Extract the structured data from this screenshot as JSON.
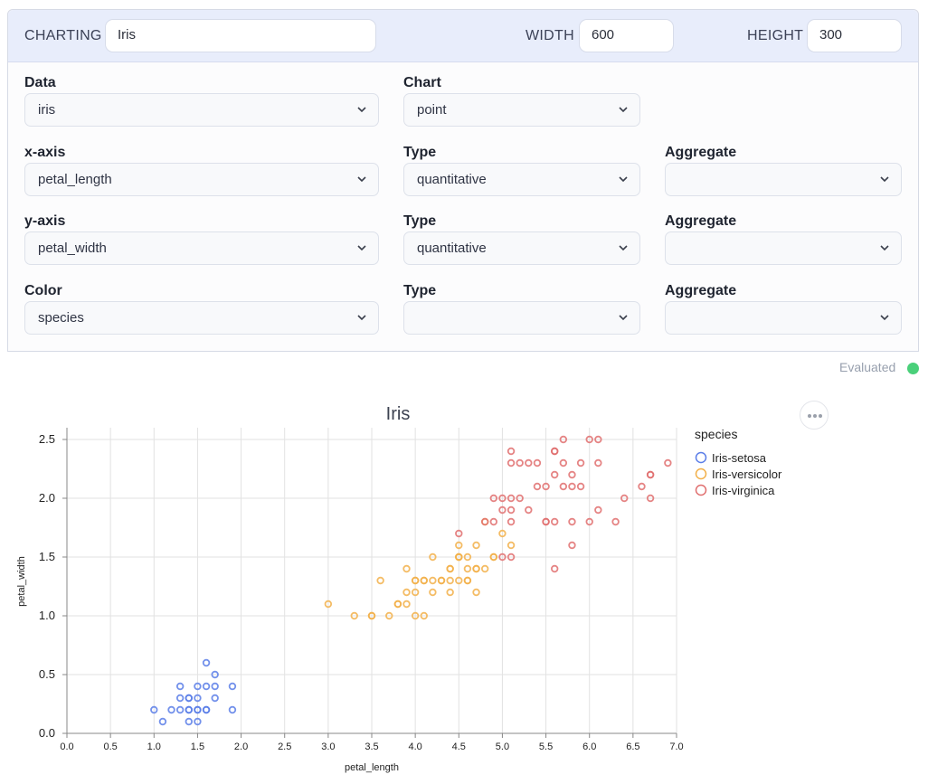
{
  "header": {
    "charting_label": "CHARTING",
    "charting_value": "Iris",
    "width_label": "WIDTH",
    "width_value": "600",
    "height_label": "HEIGHT",
    "height_value": "300"
  },
  "form": {
    "data_label": "Data",
    "data_value": "iris",
    "chart_label": "Chart",
    "chart_value": "point",
    "xaxis_label": "x-axis",
    "xaxis_value": "petal_length",
    "xtype_label": "Type",
    "xtype_value": "quantitative",
    "xagg_label": "Aggregate",
    "xagg_value": "",
    "yaxis_label": "y-axis",
    "yaxis_value": "petal_width",
    "ytype_label": "Type",
    "ytype_value": "quantitative",
    "yagg_label": "Aggregate",
    "yagg_value": "",
    "color_label": "Color",
    "color_value": "species",
    "ctype_label": "Type",
    "ctype_value": "",
    "cagg_label": "Aggregate",
    "cagg_value": ""
  },
  "status": {
    "text": "Evaluated",
    "color": "#4ad07a"
  },
  "icons": {
    "dropdown": "chevron-down-icon",
    "more": "more-horizontal-icon"
  },
  "chart_data": {
    "type": "scatter",
    "title": "Iris",
    "xlabel": "petal_length",
    "ylabel": "petal_width",
    "xlim": [
      0,
      7
    ],
    "ylim": [
      0,
      2.6
    ],
    "x_ticks": [
      "0.0",
      "0.5",
      "1.0",
      "1.5",
      "2.0",
      "2.5",
      "3.0",
      "3.5",
      "4.0",
      "4.5",
      "5.0",
      "5.5",
      "6.0",
      "6.5",
      "7.0"
    ],
    "y_ticks": [
      "0.0",
      "0.5",
      "1.0",
      "1.5",
      "2.0",
      "2.5"
    ],
    "grid": true,
    "legend_title": "species",
    "legend_position": "right",
    "series": [
      {
        "name": "Iris-setosa",
        "color": "#5b7ee8",
        "points": [
          [
            1.4,
            0.2
          ],
          [
            1.3,
            0.2
          ],
          [
            1.5,
            0.2
          ],
          [
            1.7,
            0.4
          ],
          [
            1.4,
            0.3
          ],
          [
            1.5,
            0.1
          ],
          [
            1.6,
            0.2
          ],
          [
            1.4,
            0.1
          ],
          [
            1.1,
            0.1
          ],
          [
            1.2,
            0.2
          ],
          [
            1.5,
            0.4
          ],
          [
            1.3,
            0.4
          ],
          [
            1.7,
            0.3
          ],
          [
            1.0,
            0.2
          ],
          [
            1.9,
            0.2
          ],
          [
            1.6,
            0.4
          ],
          [
            1.6,
            0.6
          ],
          [
            1.9,
            0.4
          ],
          [
            1.4,
            0.3
          ],
          [
            1.6,
            0.2
          ],
          [
            1.5,
            0.3
          ],
          [
            1.3,
            0.3
          ],
          [
            1.7,
            0.5
          ],
          [
            1.5,
            0.2
          ],
          [
            1.4,
            0.2
          ]
        ]
      },
      {
        "name": "Iris-versicolor",
        "color": "#f2b04a",
        "points": [
          [
            4.7,
            1.4
          ],
          [
            4.5,
            1.5
          ],
          [
            4.9,
            1.5
          ],
          [
            4.0,
            1.3
          ],
          [
            4.6,
            1.5
          ],
          [
            4.5,
            1.3
          ],
          [
            4.7,
            1.6
          ],
          [
            3.3,
            1.0
          ],
          [
            4.6,
            1.3
          ],
          [
            3.9,
            1.4
          ],
          [
            3.5,
            1.0
          ],
          [
            4.2,
            1.5
          ],
          [
            4.0,
            1.0
          ],
          [
            4.7,
            1.4
          ],
          [
            3.6,
            1.3
          ],
          [
            4.4,
            1.4
          ],
          [
            4.1,
            1.0
          ],
          [
            4.5,
            1.5
          ],
          [
            3.9,
            1.1
          ],
          [
            4.8,
            1.8
          ],
          [
            4.0,
            1.3
          ],
          [
            4.9,
            1.5
          ],
          [
            4.7,
            1.2
          ],
          [
            4.3,
            1.3
          ],
          [
            4.4,
            1.4
          ],
          [
            4.8,
            1.4
          ],
          [
            5.0,
            1.7
          ],
          [
            3.8,
            1.1
          ],
          [
            3.7,
            1.0
          ],
          [
            3.9,
            1.2
          ],
          [
            5.1,
            1.6
          ],
          [
            4.5,
            1.6
          ],
          [
            4.4,
            1.3
          ],
          [
            4.1,
            1.3
          ],
          [
            4.6,
            1.4
          ],
          [
            4.2,
            1.2
          ],
          [
            3.0,
            1.1
          ],
          [
            4.3,
            1.3
          ],
          [
            3.8,
            1.1
          ],
          [
            4.0,
            1.2
          ],
          [
            4.4,
            1.2
          ],
          [
            4.6,
            1.3
          ],
          [
            4.1,
            1.3
          ],
          [
            4.2,
            1.3
          ],
          [
            4.5,
            1.5
          ],
          [
            3.5,
            1.0
          ]
        ]
      },
      {
        "name": "Iris-virginica",
        "color": "#e06f6f",
        "points": [
          [
            6.0,
            2.5
          ],
          [
            5.1,
            1.9
          ],
          [
            5.9,
            2.1
          ],
          [
            5.6,
            1.8
          ],
          [
            5.8,
            2.2
          ],
          [
            6.6,
            2.1
          ],
          [
            4.5,
            1.7
          ],
          [
            6.3,
            1.8
          ],
          [
            5.8,
            1.8
          ],
          [
            6.1,
            2.5
          ],
          [
            5.1,
            2.0
          ],
          [
            5.3,
            1.9
          ],
          [
            5.5,
            2.1
          ],
          [
            5.0,
            2.0
          ],
          [
            5.1,
            2.4
          ],
          [
            5.3,
            2.3
          ],
          [
            5.5,
            1.8
          ],
          [
            6.7,
            2.2
          ],
          [
            6.9,
            2.3
          ],
          [
            5.0,
            1.5
          ],
          [
            5.7,
            2.3
          ],
          [
            4.9,
            2.0
          ],
          [
            6.7,
            2.0
          ],
          [
            4.9,
            1.8
          ],
          [
            5.7,
            2.1
          ],
          [
            6.0,
            1.8
          ],
          [
            4.8,
            1.8
          ],
          [
            5.8,
            2.1
          ],
          [
            6.1,
            1.9
          ],
          [
            6.4,
            2.0
          ],
          [
            5.6,
            2.2
          ],
          [
            5.1,
            1.5
          ],
          [
            5.6,
            1.4
          ],
          [
            6.1,
            2.3
          ],
          [
            5.6,
            2.4
          ],
          [
            5.5,
            1.8
          ],
          [
            5.4,
            2.1
          ],
          [
            5.6,
            2.4
          ],
          [
            5.1,
            2.3
          ],
          [
            5.9,
            2.3
          ],
          [
            5.7,
            2.5
          ],
          [
            5.2,
            2.3
          ],
          [
            5.0,
            1.9
          ],
          [
            5.2,
            2.0
          ],
          [
            5.4,
            2.3
          ],
          [
            5.1,
            1.8
          ],
          [
            5.8,
            1.6
          ],
          [
            6.7,
            2.2
          ]
        ]
      }
    ]
  }
}
